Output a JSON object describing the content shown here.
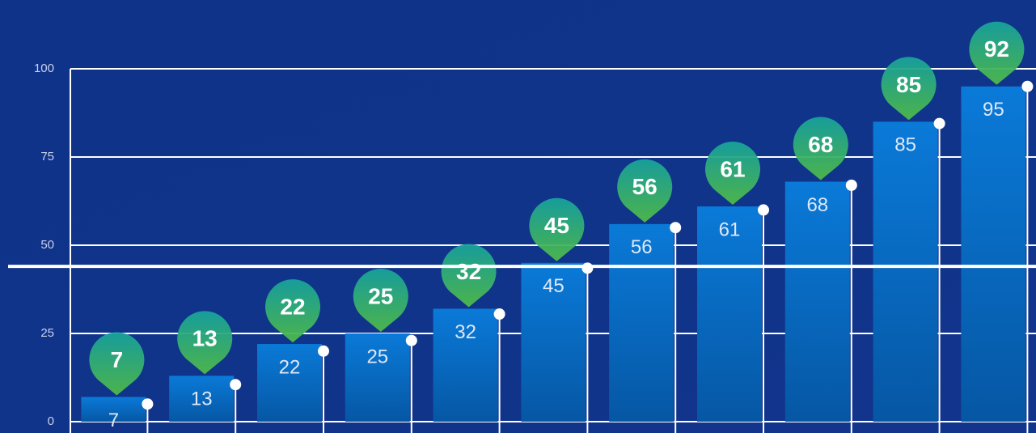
{
  "chart_data": {
    "type": "bar",
    "categories": [
      null,
      null,
      null,
      null,
      null,
      null,
      null,
      null,
      null,
      null,
      null
    ],
    "series": [
      {
        "color": "#0a78d4",
        "values": [
          7,
          13,
          22,
          25,
          32,
          45,
          56,
          61,
          68,
          85,
          95
        ]
      },
      {
        "color": "#3fb26a",
        "values": [
          7,
          13,
          22,
          25,
          32,
          45,
          56,
          61,
          68,
          85,
          92
        ]
      },
      {
        "color": "#ffffff",
        "values": [
          5,
          10.5,
          20,
          23,
          30.5,
          43.5,
          55,
          60,
          67,
          84.5,
          95
        ]
      }
    ],
    "reference_line": 44,
    "ylim": [
      0,
      100
    ],
    "yticks": [
      0,
      25,
      50,
      75,
      100
    ],
    "grid": true
  }
}
